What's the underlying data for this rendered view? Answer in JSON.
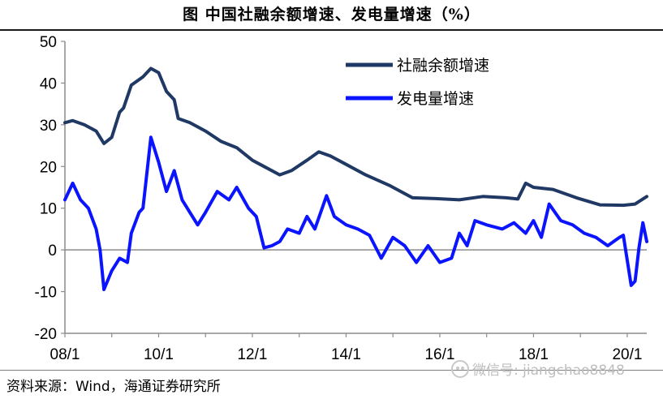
{
  "header": {
    "title": "图   中国社融余额增速、发电量增速（%）"
  },
  "footer": {
    "source": "资料来源：Wind，海通证券研究所",
    "watermark": "微信号: jiangchao8848",
    "watermark_icon": "wechat-icon"
  },
  "colors": {
    "series_1": "#1f3864",
    "series_2": "#0a14ff",
    "axis": "#8c8c8c",
    "title_rule": "#1a1a1a"
  },
  "chart_data": {
    "type": "line",
    "title": "中国社融余额增速、发电量增速（%）",
    "xlabel": "",
    "ylabel": "",
    "ylim": [
      -20,
      50
    ],
    "yticks": [
      50,
      40,
      30,
      20,
      10,
      0,
      -10,
      -20
    ],
    "xticks": [
      "08/1",
      "10/1",
      "12/1",
      "14/1",
      "16/1",
      "18/1",
      "20/1"
    ],
    "x_range": [
      "2008-01",
      "2020-06"
    ],
    "grid": false,
    "legend_position": "top-right",
    "series": [
      {
        "name": "社融余额增速",
        "points": [
          [
            "2008-01",
            30.5
          ],
          [
            "2008-03",
            31.0
          ],
          [
            "2008-06",
            30.0
          ],
          [
            "2008-09",
            28.5
          ],
          [
            "2008-11",
            25.5
          ],
          [
            "2009-01",
            27.0
          ],
          [
            "2009-03",
            33.0
          ],
          [
            "2009-04",
            34.0
          ],
          [
            "2009-06",
            39.5
          ],
          [
            "2009-09",
            41.5
          ],
          [
            "2009-11",
            43.5
          ],
          [
            "2010-01",
            42.5
          ],
          [
            "2010-03",
            38.0
          ],
          [
            "2010-05",
            36.0
          ],
          [
            "2010-06",
            31.5
          ],
          [
            "2010-09",
            30.5
          ],
          [
            "2011-01",
            28.5
          ],
          [
            "2011-05",
            26.0
          ],
          [
            "2011-09",
            24.5
          ],
          [
            "2012-01",
            21.5
          ],
          [
            "2012-04",
            20.0
          ],
          [
            "2012-08",
            18.0
          ],
          [
            "2012-11",
            19.0
          ],
          [
            "2013-03",
            21.5
          ],
          [
            "2013-06",
            23.5
          ],
          [
            "2013-09",
            22.5
          ],
          [
            "2014-01",
            20.5
          ],
          [
            "2014-06",
            18.0
          ],
          [
            "2014-12",
            15.5
          ],
          [
            "2015-06",
            12.5
          ],
          [
            "2015-12",
            12.3
          ],
          [
            "2016-06",
            12.0
          ],
          [
            "2016-12",
            12.8
          ],
          [
            "2017-06",
            12.5
          ],
          [
            "2017-09",
            12.2
          ],
          [
            "2017-11",
            16.0
          ],
          [
            "2018-01",
            15.0
          ],
          [
            "2018-06",
            14.5
          ],
          [
            "2018-12",
            12.5
          ],
          [
            "2019-06",
            10.8
          ],
          [
            "2019-12",
            10.7
          ],
          [
            "2020-03",
            11.0
          ],
          [
            "2020-06",
            12.8
          ]
        ]
      },
      {
        "name": "发电量增速",
        "points": [
          [
            "2008-01",
            12.0
          ],
          [
            "2008-03",
            16.0
          ],
          [
            "2008-05",
            12.0
          ],
          [
            "2008-07",
            10.0
          ],
          [
            "2008-09",
            5.0
          ],
          [
            "2008-10",
            0.0
          ],
          [
            "2008-11",
            -9.5
          ],
          [
            "2009-01",
            -5.0
          ],
          [
            "2009-03",
            -2.0
          ],
          [
            "2009-05",
            -3.0
          ],
          [
            "2009-06",
            4.0
          ],
          [
            "2009-08",
            9.0
          ],
          [
            "2009-09",
            10.0
          ],
          [
            "2009-11",
            27.0
          ],
          [
            "2010-01",
            21.0
          ],
          [
            "2010-03",
            14.0
          ],
          [
            "2010-05",
            19.0
          ],
          [
            "2010-07",
            12.0
          ],
          [
            "2010-09",
            9.0
          ],
          [
            "2010-11",
            6.0
          ],
          [
            "2011-01",
            9.0
          ],
          [
            "2011-04",
            14.0
          ],
          [
            "2011-07",
            12.0
          ],
          [
            "2011-09",
            15.0
          ],
          [
            "2011-12",
            10.0
          ],
          [
            "2012-02",
            8.0
          ],
          [
            "2012-04",
            0.5
          ],
          [
            "2012-06",
            1.0
          ],
          [
            "2012-08",
            2.0
          ],
          [
            "2012-10",
            5.0
          ],
          [
            "2013-01",
            4.0
          ],
          [
            "2013-03",
            8.0
          ],
          [
            "2013-05",
            5.0
          ],
          [
            "2013-08",
            13.0
          ],
          [
            "2013-10",
            8.0
          ],
          [
            "2014-01",
            6.0
          ],
          [
            "2014-04",
            5.0
          ],
          [
            "2014-07",
            3.5
          ],
          [
            "2014-10",
            -2.0
          ],
          [
            "2015-01",
            3.0
          ],
          [
            "2015-04",
            1.0
          ],
          [
            "2015-07",
            -3.0
          ],
          [
            "2015-10",
            1.0
          ],
          [
            "2016-01",
            -3.0
          ],
          [
            "2016-04",
            -2.0
          ],
          [
            "2016-06",
            4.0
          ],
          [
            "2016-08",
            1.0
          ],
          [
            "2016-10",
            7.0
          ],
          [
            "2017-01",
            6.0
          ],
          [
            "2017-05",
            5.0
          ],
          [
            "2017-08",
            6.5
          ],
          [
            "2017-11",
            4.0
          ],
          [
            "2018-01",
            7.0
          ],
          [
            "2018-03",
            3.0
          ],
          [
            "2018-05",
            11.0
          ],
          [
            "2018-08",
            7.0
          ],
          [
            "2018-11",
            6.0
          ],
          [
            "2019-02",
            4.0
          ],
          [
            "2019-05",
            3.0
          ],
          [
            "2019-08",
            1.0
          ],
          [
            "2019-11",
            3.0
          ],
          [
            "2019-12",
            3.5
          ],
          [
            "2020-02",
            -8.5
          ],
          [
            "2020-03",
            -7.5
          ],
          [
            "2020-04",
            0.5
          ],
          [
            "2020-05",
            6.5
          ],
          [
            "2020-06",
            2.0
          ]
        ]
      }
    ]
  }
}
